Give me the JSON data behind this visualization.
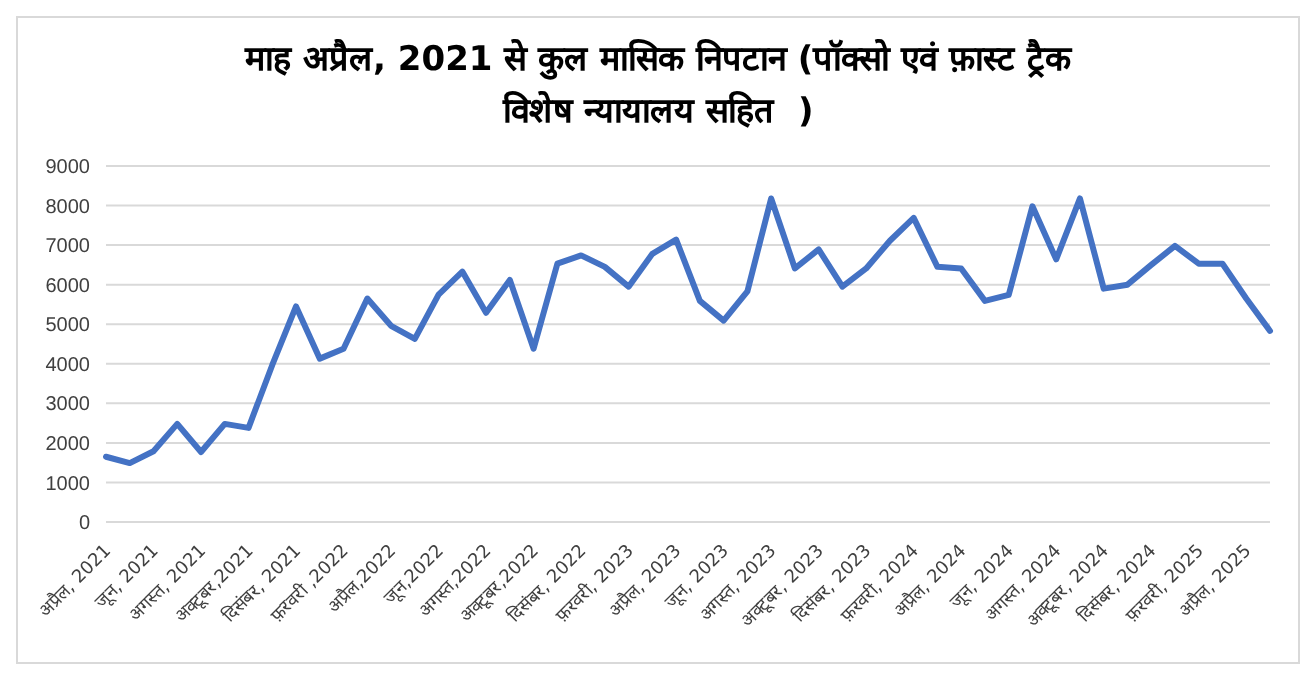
{
  "chart_data": {
    "type": "line",
    "title": "माह अप्रैल, 2021 से कुल मासिक निपटान (पॉक्सो एवं फ़ास्ट ट्रैक\nविशेष न्यायालय सहित  )",
    "categories": [
      "अप्रैल, 2021",
      null,
      "जून, 2021",
      null,
      "अगस्त, 2021",
      null,
      "अक्टूबर,2021",
      null,
      "दिसंबर, 2021",
      null,
      "फ़रवरी ,2022",
      null,
      "अप्रैल,2022",
      null,
      "जून,2022",
      null,
      "अगस्त,2022",
      null,
      "अक्टूबर,2022",
      null,
      "दिसंबर, 2022",
      null,
      "फ़रवरी, 2023",
      null,
      "अप्रैल, 2023",
      null,
      "जून, 2023",
      null,
      "अगस्त, 2023",
      null,
      "अक्टूबर, 2023",
      null,
      "दिसंबर, 2023",
      null,
      "फ़रवरी, 2024",
      null,
      "अप्रैल, 2024",
      null,
      "जून, 2024",
      null,
      "अगस्त, 2024",
      null,
      "अक्टूबर, 2024",
      null,
      "दिसंबर, 2024",
      null,
      "फ़रवरी, 2025",
      null,
      "अप्रैल, 2025",
      null
    ],
    "series": [
      {
        "color": "#4472c4",
        "values": [
          1650,
          1490,
          1790,
          2480,
          1770,
          2480,
          2380,
          3970,
          5450,
          4130,
          4380,
          5650,
          4960,
          4630,
          5750,
          6330,
          5290,
          6120,
          4380,
          6530,
          6740,
          6450,
          5950,
          6780,
          7140,
          5590,
          5090,
          5830,
          8180,
          6410,
          6890,
          5950,
          6410,
          7110,
          7690,
          6450,
          6410,
          5590,
          5740,
          7980,
          6640,
          8180,
          5900,
          6000,
          6500,
          6980,
          6530,
          6530,
          5650,
          4830
        ]
      }
    ],
    "ylim": [
      0,
      9000
    ],
    "yticks": [
      0,
      1000,
      2000,
      3000,
      4000,
      5000,
      6000,
      7000,
      8000,
      9000
    ],
    "grid": "y",
    "marker": "none",
    "line_style": "solid",
    "legend": false
  }
}
